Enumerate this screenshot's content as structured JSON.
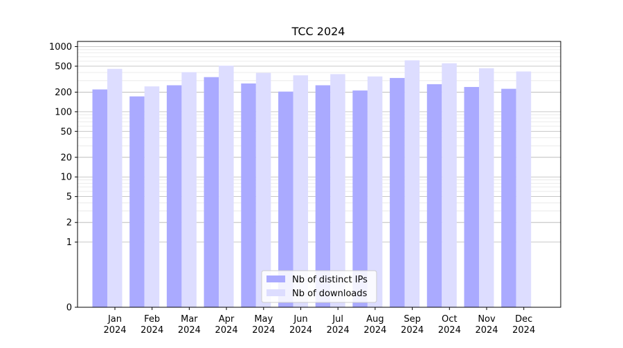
{
  "chart_data": {
    "type": "bar",
    "title": "TCC 2024",
    "xlabel": "",
    "ylabel": "",
    "y_scale": "symlog",
    "ylim": [
      0,
      1200
    ],
    "yticks": [
      0,
      1,
      2,
      5,
      10,
      20,
      50,
      100,
      200,
      500,
      1000
    ],
    "ytick_labels": [
      "0",
      "1",
      "2",
      "5",
      "10",
      "20",
      "50",
      "100",
      "200",
      "500",
      "1000"
    ],
    "grid": true,
    "legend_position": "bottom-center",
    "categories": [
      [
        "Jan",
        "2024"
      ],
      [
        "Feb",
        "2024"
      ],
      [
        "Mar",
        "2024"
      ],
      [
        "Apr",
        "2024"
      ],
      [
        "May",
        "2024"
      ],
      [
        "Jun",
        "2024"
      ],
      [
        "Jul",
        "2024"
      ],
      [
        "Aug",
        "2024"
      ],
      [
        "Sep",
        "2024"
      ],
      [
        "Oct",
        "2024"
      ],
      [
        "Nov",
        "2024"
      ],
      [
        "Dec",
        "2024"
      ]
    ],
    "series": [
      {
        "name": "Nb of distinct IPs",
        "color": "#aaaaff",
        "values": [
          220,
          172,
          255,
          340,
          272,
          204,
          255,
          212,
          330,
          265,
          240,
          225
        ]
      },
      {
        "name": "Nb of downloads",
        "color": "#ddddff",
        "values": [
          455,
          245,
          405,
          510,
          395,
          362,
          378,
          348,
          615,
          555,
          465,
          415
        ]
      }
    ]
  }
}
